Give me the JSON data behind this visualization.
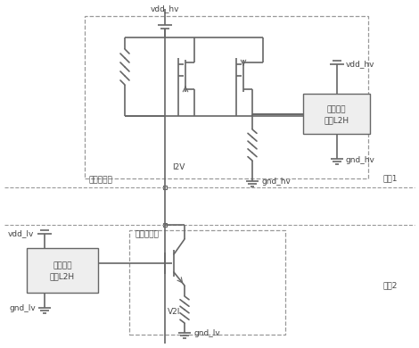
{
  "bg_color": "#ffffff",
  "lc": "#888888",
  "dc": "#666666",
  "tc": "#444444",
  "labels": {
    "vdd_hv_top": "vdd_hv",
    "vdd_hv_right": "vdd_hv",
    "gnd_hv_bottom": "gnd_hv",
    "gnd_hv_right": "gnd_hv",
    "I2V": "I2V",
    "chip1": "芯片1",
    "chip2": "芯片2",
    "high_rx": "高压接收端",
    "low_tx": "低压发送端",
    "rx_block_line1": "接收数据",
    "rx_block_line2": "处理L2H",
    "tx_block_line1": "发送数据",
    "tx_block_line2": "生成L2H",
    "V2I": "V2I",
    "vdd_lv": "vdd_lv",
    "gnd_lv_bottom": "gnd_lv",
    "gnd_lv_tx": "gnd_lv"
  }
}
